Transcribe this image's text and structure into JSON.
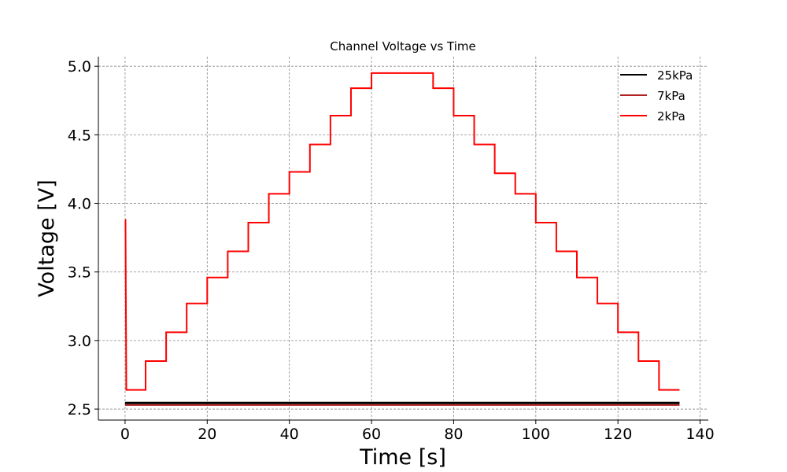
{
  "chart_data": {
    "type": "line",
    "title": "Channel Voltage vs Time",
    "xlabel": "Time [s]",
    "ylabel": "Voltage [V]",
    "xlim": [
      -6.5,
      142
    ],
    "ylim": [
      2.42,
      5.07
    ],
    "xticks": [
      0,
      20,
      40,
      60,
      80,
      100,
      120,
      140
    ],
    "yticks": [
      2.5,
      3.0,
      3.5,
      4.0,
      4.5,
      5.0
    ],
    "xtick_labels": [
      "0",
      "20",
      "40",
      "60",
      "80",
      "100",
      "120",
      "140"
    ],
    "ytick_labels": [
      "2.5",
      "3.0",
      "3.5",
      "4.0",
      "4.5",
      "5.0"
    ],
    "grid": true,
    "legend_position": "top-right",
    "series": [
      {
        "name": "25kPa",
        "color": "#000000",
        "x": [
          0,
          135
        ],
        "y": [
          2.545,
          2.545
        ]
      },
      {
        "name": "7kPa",
        "color": "#b22222",
        "x": [
          0,
          135
        ],
        "y": [
          2.53,
          2.53
        ]
      },
      {
        "name": "2kPa",
        "color": "#ff0000",
        "x": [
          0,
          0.1,
          0.3,
          5,
          5,
          10,
          10,
          15,
          15,
          20,
          20,
          25,
          25,
          30,
          30,
          35,
          35,
          40,
          40,
          45,
          45,
          50,
          50,
          55,
          55,
          60,
          60,
          75,
          75,
          80,
          80,
          85,
          85,
          90,
          90,
          95,
          95,
          100,
          100,
          105,
          105,
          110,
          110,
          115,
          115,
          120,
          120,
          125,
          125,
          130,
          130,
          135
        ],
        "y": [
          3.88,
          3.88,
          2.64,
          2.64,
          2.85,
          2.85,
          3.06,
          3.06,
          3.27,
          3.27,
          3.46,
          3.46,
          3.65,
          3.65,
          3.86,
          3.86,
          4.07,
          4.07,
          4.23,
          4.23,
          4.43,
          4.43,
          4.64,
          4.64,
          4.84,
          4.84,
          4.95,
          4.95,
          4.84,
          4.84,
          4.64,
          4.64,
          4.43,
          4.43,
          4.22,
          4.22,
          4.07,
          4.07,
          3.86,
          3.86,
          3.65,
          3.65,
          3.46,
          3.46,
          3.27,
          3.27,
          3.06,
          3.06,
          2.85,
          2.85,
          2.64,
          2.64
        ]
      }
    ]
  }
}
